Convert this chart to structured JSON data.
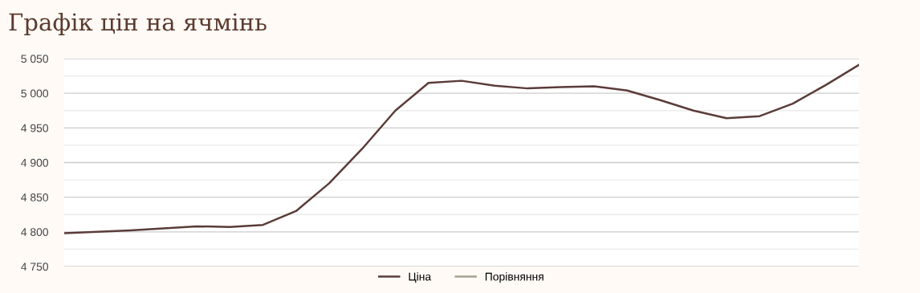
{
  "chart_data": {
    "type": "line",
    "title": "Графік цін на ячмінь",
    "categories": [
      null,
      null,
      null,
      null,
      null,
      null,
      null,
      null,
      null,
      null,
      null,
      null,
      null,
      null,
      null,
      null,
      null,
      null,
      null,
      null,
      null,
      null,
      null,
      null,
      null
    ],
    "series": [
      {
        "name": "Ціна",
        "color": "#5a3c38",
        "values": [
          4798,
          4800,
          4802,
          4805,
          4808,
          4807,
          4810,
          4830,
          4870,
          4920,
          4975,
          5015,
          5018,
          5011,
          5007,
          5009,
          5010,
          5004,
          4990,
          4975,
          4964,
          4967,
          4985,
          5012,
          5041
        ]
      },
      {
        "name": "Порівняння",
        "color": "#a3a38f",
        "values": [
          null,
          null,
          null,
          null,
          null,
          null,
          null,
          null,
          null,
          null,
          null,
          null,
          null,
          null,
          null,
          null,
          null,
          null,
          null,
          null,
          null,
          null,
          null,
          null,
          null
        ]
      }
    ],
    "ylim": [
      4750,
      5050
    ],
    "yticks": [
      {
        "value": 4750,
        "label": "4 750"
      },
      {
        "value": 4775,
        "label": null
      },
      {
        "value": 4800,
        "label": "4 800"
      },
      {
        "value": 4825,
        "label": null
      },
      {
        "value": 4850,
        "label": "4 850"
      },
      {
        "value": 4875,
        "label": null
      },
      {
        "value": 4900,
        "label": "4 900"
      },
      {
        "value": 4925,
        "label": null
      },
      {
        "value": 4950,
        "label": "4 950"
      },
      {
        "value": 4975,
        "label": null
      },
      {
        "value": 5000,
        "label": "5 000"
      },
      {
        "value": 5025,
        "label": null
      },
      {
        "value": 5050,
        "label": "5 050"
      }
    ],
    "grid": "y",
    "legend": "bottom",
    "marker": "none",
    "line_style": "solid",
    "tick_labels": "y"
  }
}
